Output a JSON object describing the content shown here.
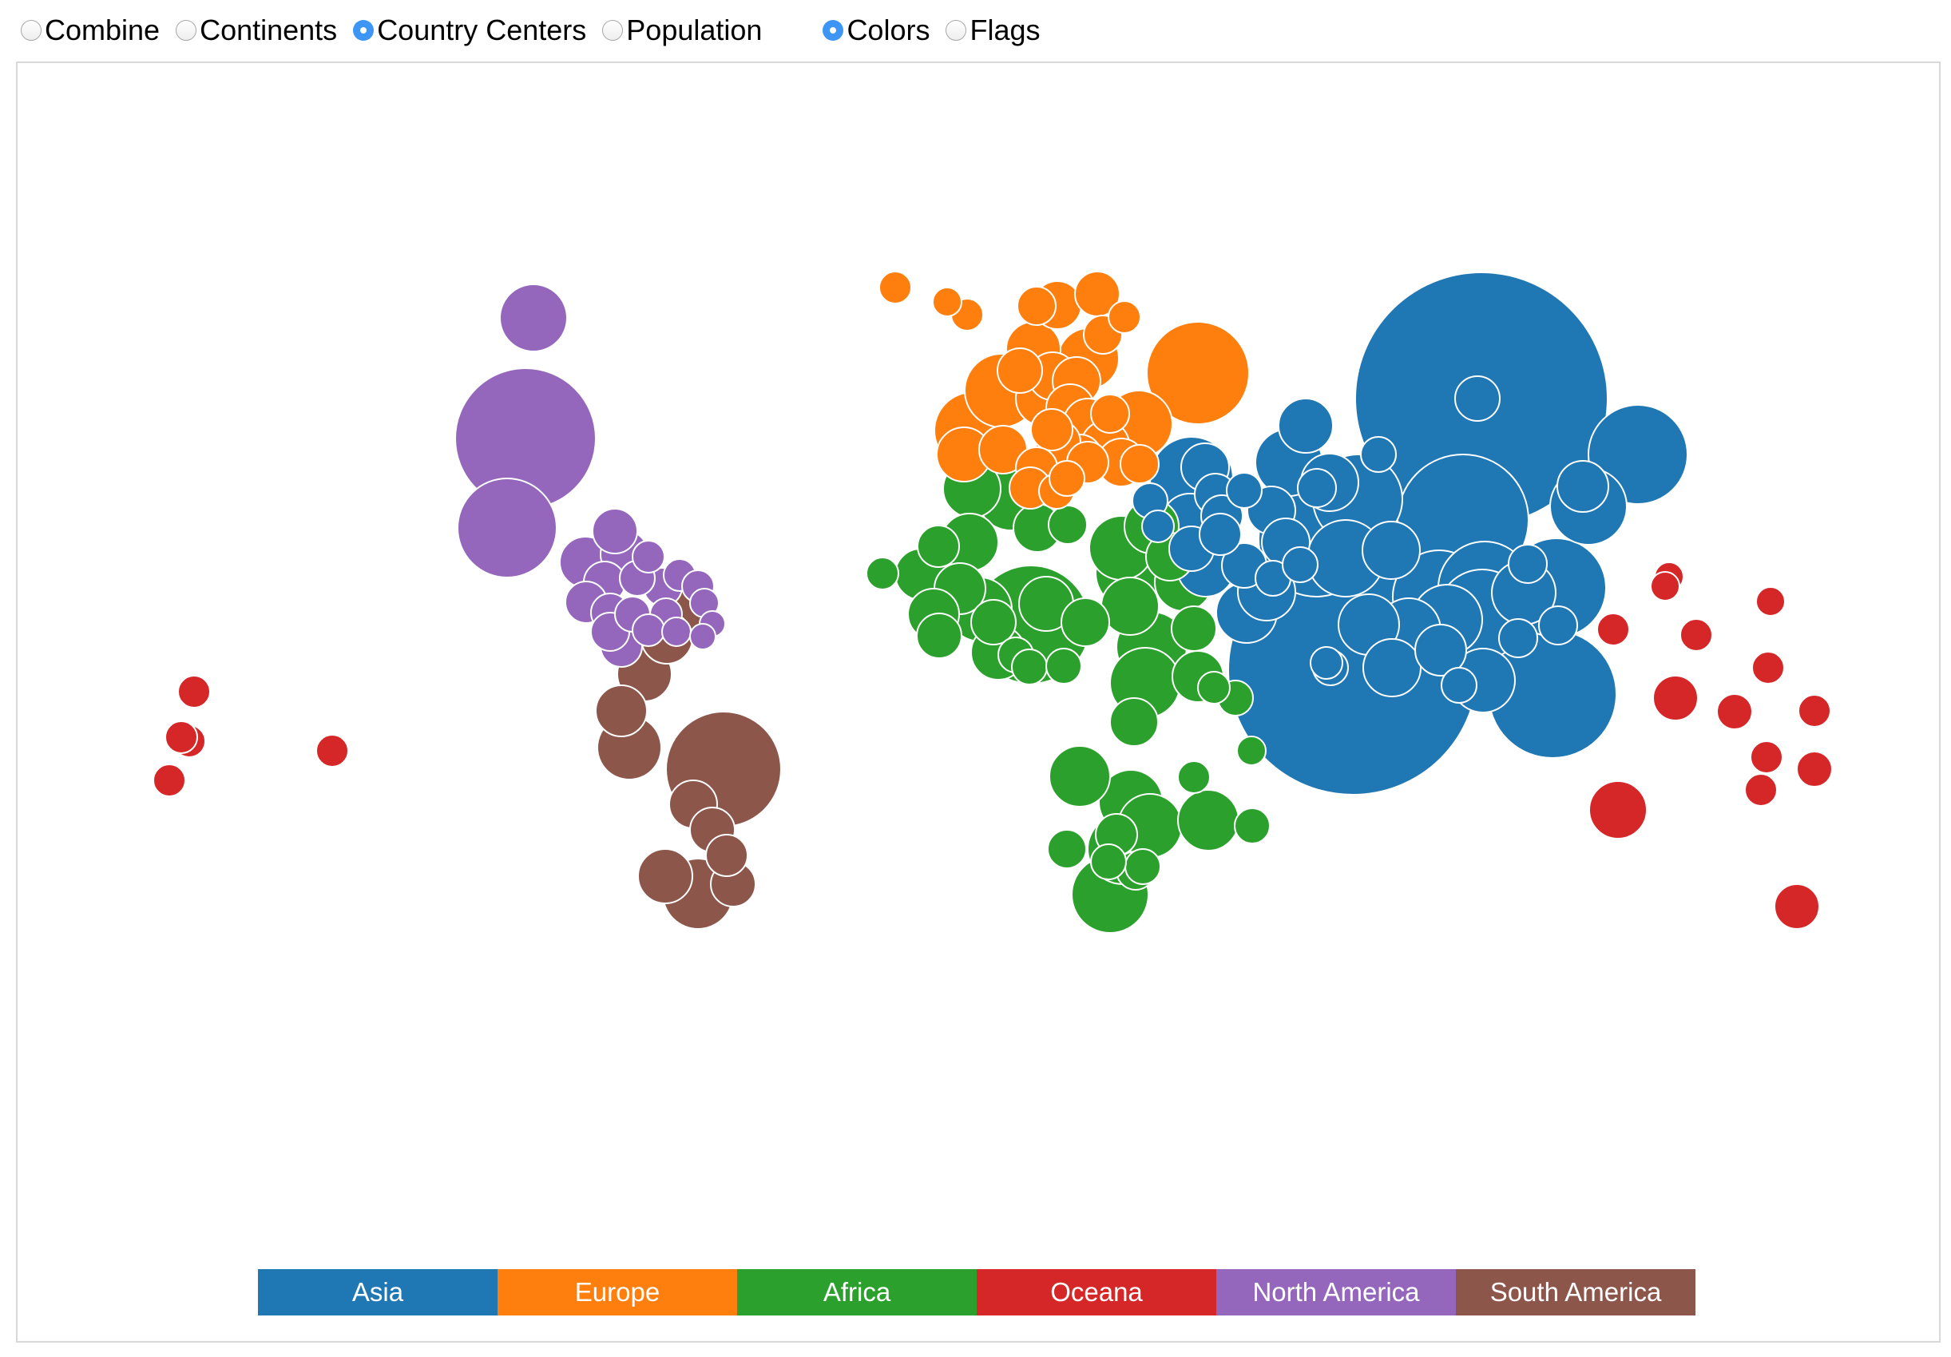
{
  "controls": {
    "layout_options": [
      {
        "label": "Combine",
        "checked": false
      },
      {
        "label": "Continents",
        "checked": false
      },
      {
        "label": "Country Centers",
        "checked": true
      },
      {
        "label": "Population",
        "checked": false
      }
    ],
    "display_options": [
      {
        "label": "Colors",
        "checked": true
      },
      {
        "label": "Flags",
        "checked": false
      }
    ]
  },
  "legend": {
    "items": [
      {
        "label": "Asia",
        "color": "#1f77b4"
      },
      {
        "label": "Europe",
        "color": "#ff7f0e"
      },
      {
        "label": "Africa",
        "color": "#2ca02c"
      },
      {
        "label": "Oceana",
        "color": "#d62728"
      },
      {
        "label": "North America",
        "color": "#9467bd"
      },
      {
        "label": "South America",
        "color": "#8c564b"
      }
    ]
  }
}
